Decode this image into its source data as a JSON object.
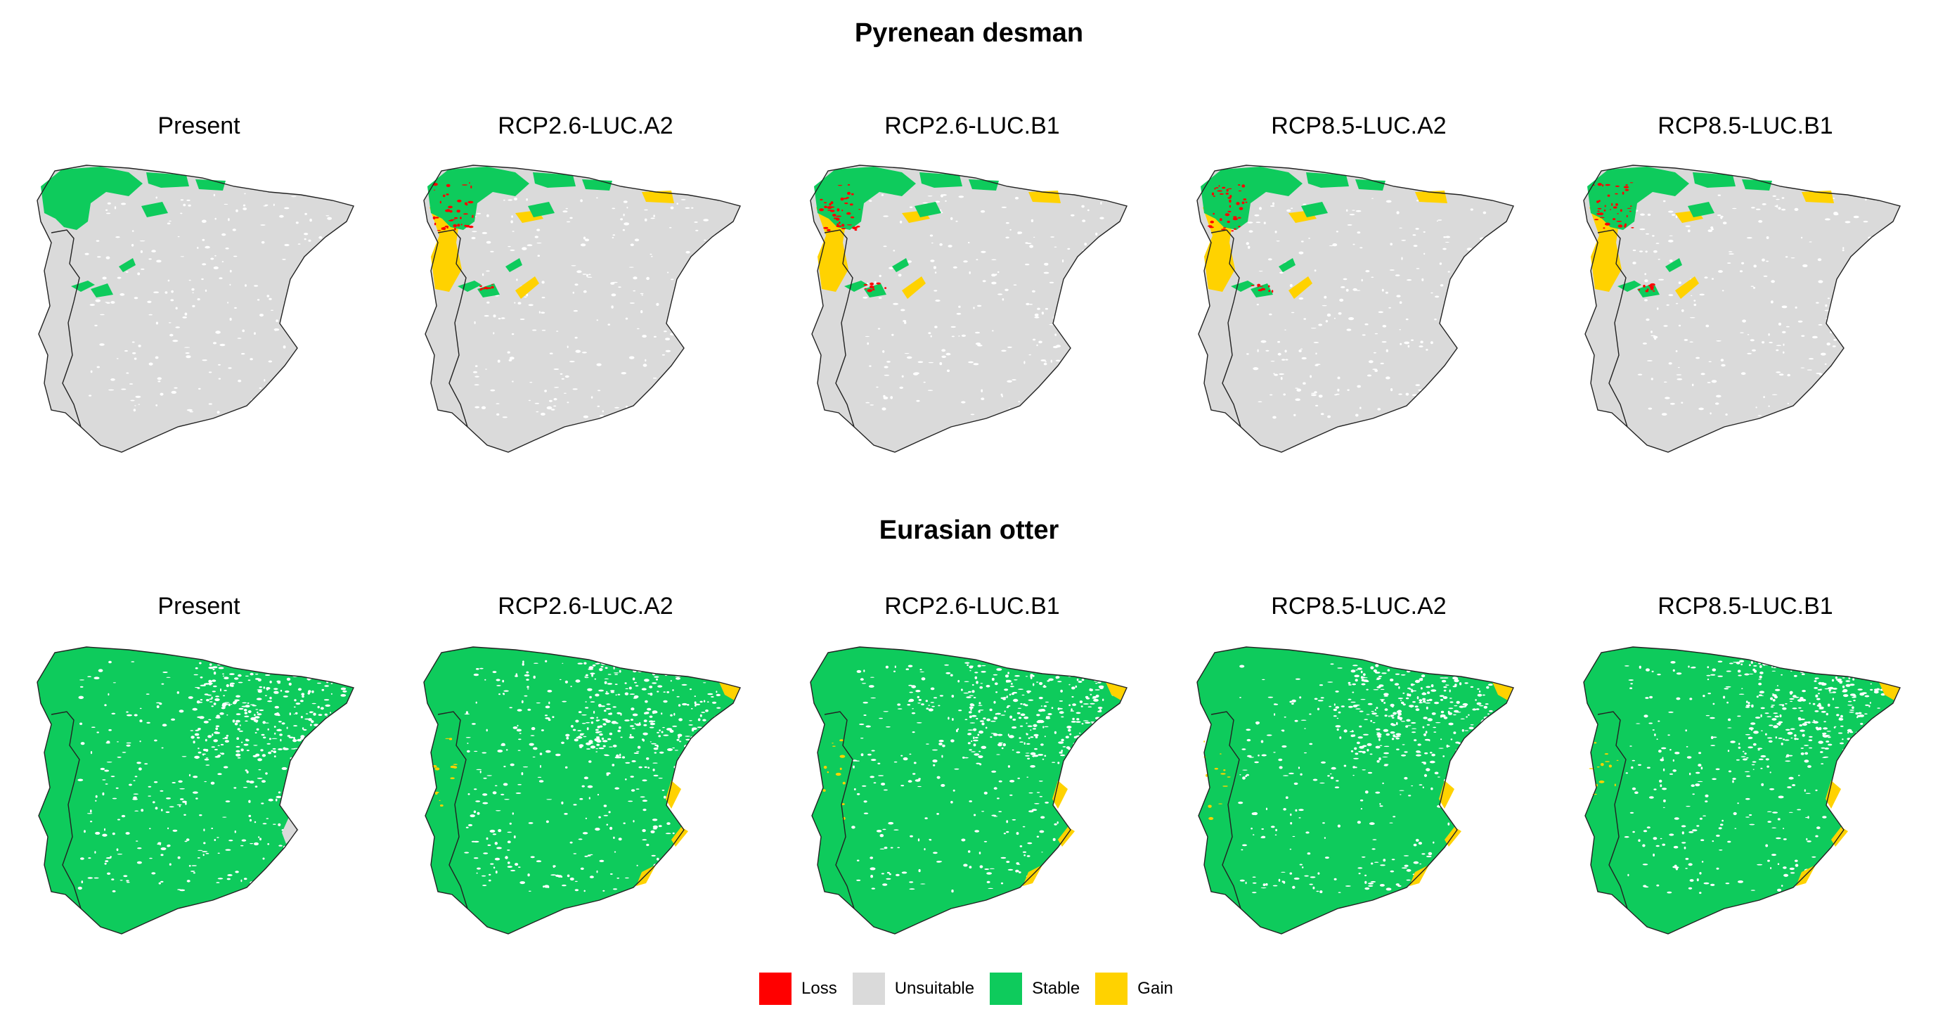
{
  "sections": [
    {
      "title": "Pyrenean desman",
      "panels": [
        {
          "title": "Present",
          "variant": "desman-present"
        },
        {
          "title": "RCP2.6-LUC.A2",
          "variant": "desman-future"
        },
        {
          "title": "RCP2.6-LUC.B1",
          "variant": "desman-future"
        },
        {
          "title": "RCP8.5-LUC.A2",
          "variant": "desman-future"
        },
        {
          "title": "RCP8.5-LUC.B1",
          "variant": "desman-future"
        }
      ]
    },
    {
      "title": "Eurasian otter",
      "panels": [
        {
          "title": "Present",
          "variant": "otter-present"
        },
        {
          "title": "RCP2.6-LUC.A2",
          "variant": "otter-future"
        },
        {
          "title": "RCP2.6-LUC.B1",
          "variant": "otter-future"
        },
        {
          "title": "RCP8.5-LUC.A2",
          "variant": "otter-future"
        },
        {
          "title": "RCP8.5-LUC.B1",
          "variant": "otter-future"
        }
      ]
    }
  ],
  "legend": [
    {
      "label": "Loss",
      "color": "#ff0000"
    },
    {
      "label": "Unsuitable",
      "color": "#dadada"
    },
    {
      "label": "Stable",
      "color": "#0ecb5c"
    },
    {
      "label": "Gain",
      "color": "#ffd200"
    }
  ],
  "colors": {
    "loss": "#ff0000",
    "unsuitable": "#dadada",
    "stable": "#0ecb5c",
    "gain": "#ffd200"
  }
}
